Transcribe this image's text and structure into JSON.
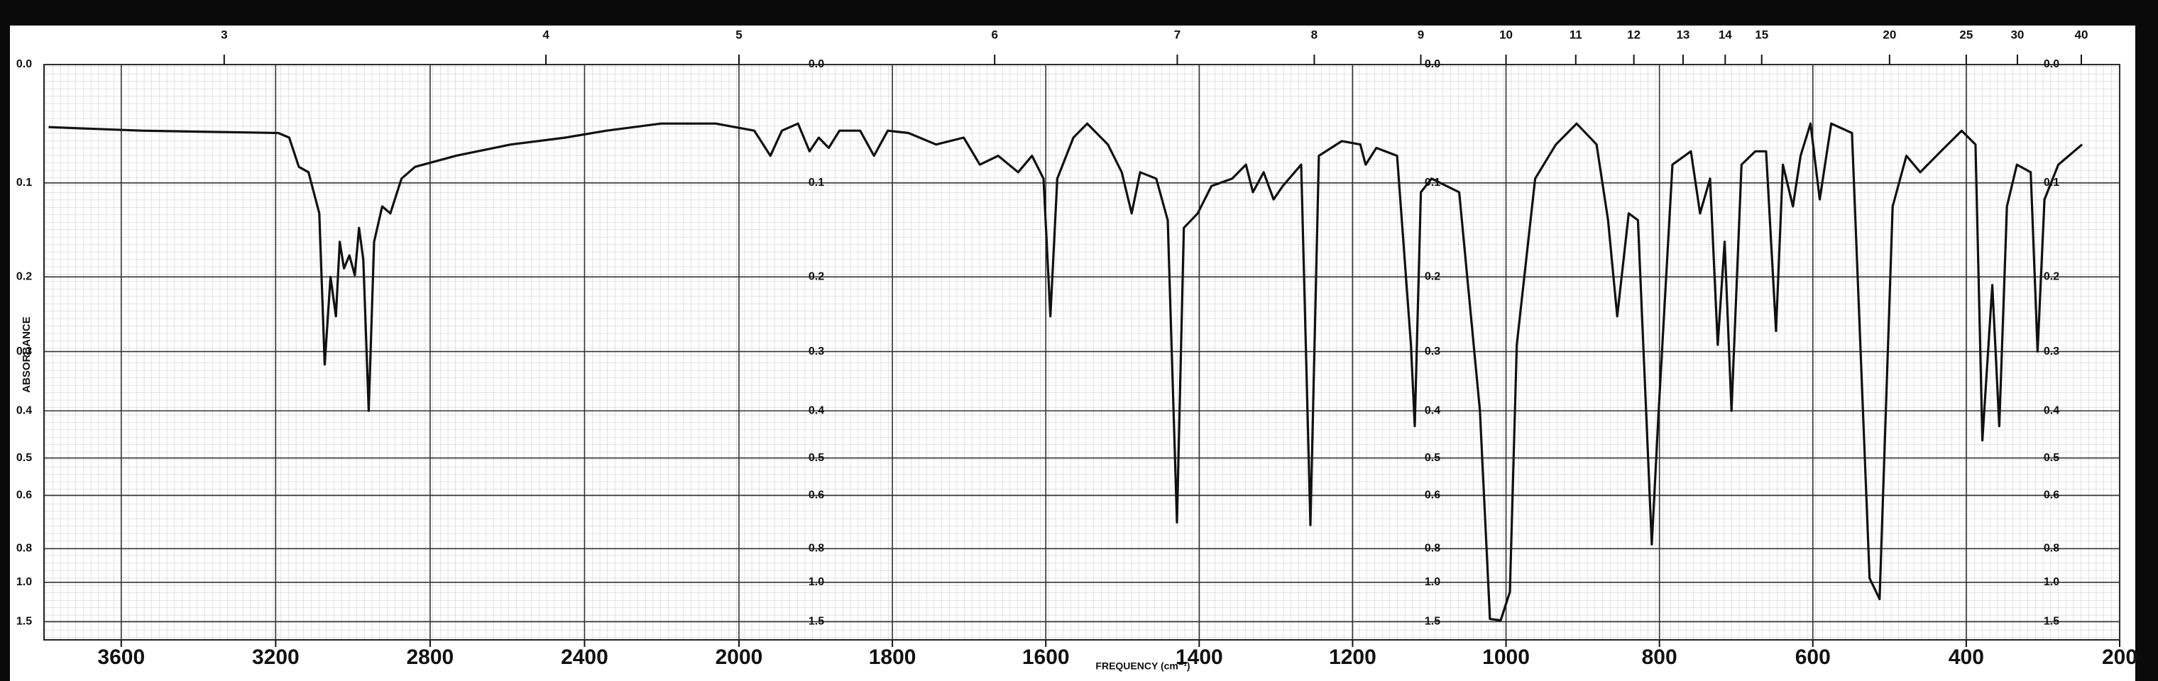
{
  "chart_data": {
    "type": "line",
    "y_label": "ABSORBANCE",
    "x_label": "FREQUENCY (cm⁻¹)",
    "xlim": [
      3800,
      200
    ],
    "xbreak": 2000,
    "xticks": [
      3600,
      3200,
      2800,
      2400,
      2000,
      1800,
      1600,
      1400,
      1200,
      1000,
      800,
      600,
      400,
      200
    ],
    "x2ticks": [
      3,
      4,
      5,
      6,
      7,
      8,
      9,
      10,
      11,
      12,
      13,
      14,
      15,
      20,
      25,
      30,
      40
    ],
    "yscale": "absorbance",
    "yticks": [
      {
        "value": 0,
        "label": "0.0"
      },
      0.1,
      0.2,
      0.3,
      0.4,
      0.5,
      0.6,
      0.8,
      {
        "value": 1,
        "label": "1.0"
      },
      1.5
    ],
    "grid": true,
    "color": "#111111",
    "x": [
      3788,
      3547,
      3193,
      3165,
      3140,
      3115,
      3087,
      3073,
      3058,
      3044,
      3034,
      3023,
      3009,
      2995,
      2984,
      2973,
      2959,
      2945,
      2924,
      2903,
      2874,
      2839,
      2733,
      2591,
      2450,
      2343,
      2202,
      2060,
      1980,
      1959,
      1944,
      1923,
      1908,
      1896,
      1883,
      1869,
      1842,
      1824,
      1806,
      1779,
      1743,
      1707,
      1686,
      1662,
      1636,
      1618,
      1603,
      1594,
      1585,
      1564,
      1546,
      1519,
      1501,
      1488,
      1477,
      1456,
      1441,
      1429,
      1420,
      1402,
      1384,
      1357,
      1339,
      1330,
      1316,
      1303,
      1291,
      1267,
      1255,
      1244,
      1214,
      1190,
      1183,
      1169,
      1142,
      1124,
      1119,
      1111,
      1097,
      1061,
      1034,
      1021,
      1007,
      995,
      986,
      962,
      935,
      908,
      882,
      867,
      855,
      840,
      828,
      810,
      801,
      783,
      759,
      747,
      734,
      724,
      715,
      706,
      693,
      675,
      661,
      648,
      639,
      626,
      616,
      603,
      591,
      576,
      549,
      526,
      513,
      496,
      478,
      460,
      433,
      406,
      388,
      379,
      366,
      357,
      347,
      334,
      316,
      307,
      298,
      280,
      249
    ],
    "values": [
      0.05,
      0.053,
      0.055,
      0.059,
      0.085,
      0.09,
      0.13,
      0.32,
      0.2,
      0.25,
      0.16,
      0.19,
      0.175,
      0.198,
      0.145,
      0.18,
      0.4,
      0.16,
      0.123,
      0.13,
      0.096,
      0.085,
      0.075,
      0.065,
      0.059,
      0.053,
      0.047,
      0.047,
      0.053,
      0.075,
      0.053,
      0.047,
      0.071,
      0.059,
      0.068,
      0.053,
      0.053,
      0.075,
      0.053,
      0.055,
      0.065,
      0.059,
      0.083,
      0.075,
      0.09,
      0.075,
      0.096,
      0.25,
      0.096,
      0.059,
      0.047,
      0.065,
      0.09,
      0.13,
      0.09,
      0.096,
      0.137,
      0.69,
      0.145,
      0.13,
      0.103,
      0.096,
      0.083,
      0.109,
      0.09,
      0.116,
      0.103,
      0.083,
      0.7,
      0.075,
      0.062,
      0.065,
      0.083,
      0.068,
      0.075,
      0.29,
      0.43,
      0.109,
      0.096,
      0.109,
      0.4,
      1.44,
      1.47,
      1.08,
      0.29,
      0.096,
      0.065,
      0.047,
      0.065,
      0.137,
      0.25,
      0.13,
      0.137,
      0.78,
      0.4,
      0.083,
      0.071,
      0.13,
      0.096,
      0.29,
      0.16,
      0.4,
      0.083,
      0.071,
      0.071,
      0.27,
      0.083,
      0.123,
      0.075,
      0.047,
      0.116,
      0.047,
      0.055,
      0.97,
      1.15,
      0.123,
      0.075,
      0.09,
      0.071,
      0.053,
      0.065,
      0.46,
      0.21,
      0.43,
      0.123,
      0.083,
      0.09,
      0.3,
      0.116,
      0.083,
      0.065
    ]
  }
}
